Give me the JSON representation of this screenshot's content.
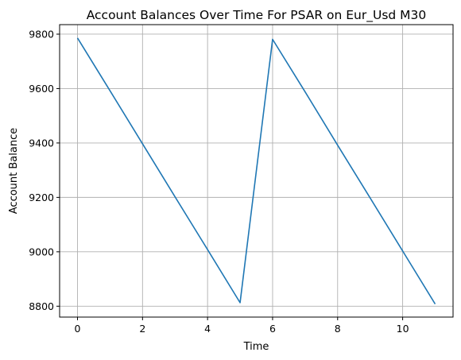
{
  "chart_data": {
    "type": "line",
    "title": "Account Balances Over Time For PSAR on Eur_Usd M30",
    "xlabel": "Time",
    "ylabel": "Account Balance",
    "xlim": [
      -0.55,
      11.55
    ],
    "ylim": [
      8760,
      9835
    ],
    "xticks": [
      0,
      2,
      4,
      6,
      8,
      10
    ],
    "xtick_labels": [
      "0",
      "2",
      "4",
      "6",
      "8",
      "10"
    ],
    "yticks": [
      8800,
      9000,
      9200,
      9400,
      9600,
      9800
    ],
    "ytick_labels": [
      "8800",
      "9000",
      "9200",
      "9400",
      "9600",
      "9800"
    ],
    "grid": true,
    "series": [
      {
        "color": "#1f77b4",
        "x": [
          0,
          1,
          2,
          3,
          4,
          5,
          6,
          7,
          8,
          9,
          10,
          11
        ],
        "y": [
          9786,
          9592,
          9397,
          9202,
          9008,
          8813,
          9781,
          9588,
          9392,
          9198,
          9003,
          8808
        ]
      }
    ]
  }
}
